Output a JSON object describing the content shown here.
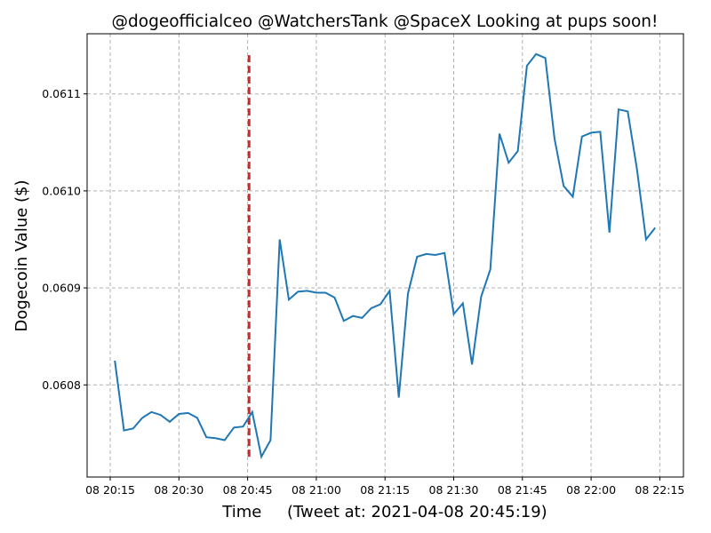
{
  "chart_data": {
    "type": "line",
    "title": "@dogeofficialceo @WatchersTank @SpaceX Looking at pups soon!",
    "xlabel": "Time     (Tweet at: 2021-04-08 20:45:19)",
    "ylabel": "Dogecoin Value ($)",
    "xlim": [
      "2021-04-08 20:09:57",
      "2021-04-08 22:20:10"
    ],
    "ylim": [
      0.060705,
      0.061162
    ],
    "grid": true,
    "x_ticks": [
      "08 20:15",
      "08 20:30",
      "08 20:45",
      "08 21:00",
      "08 21:15",
      "08 21:30",
      "08 21:45",
      "08 22:00",
      "08 22:15"
    ],
    "x_tick_times": [
      "20:15",
      "20:30",
      "20:45",
      "21:00",
      "21:15",
      "21:30",
      "21:45",
      "22:00",
      "22:15"
    ],
    "y_ticks": [
      "0.0608",
      "0.0609",
      "0.0610",
      "0.0611"
    ],
    "line_color": "#1f77b4",
    "tweet_marker": {
      "time": "20:45:19",
      "y_range": [
        0.060726,
        0.06114
      ],
      "color": "#d62728",
      "style": "dashed"
    },
    "series": [
      {
        "start_time": "20:16",
        "interval_minutes": 2,
        "values": [
          0.060825,
          0.060753,
          0.060755,
          0.060766,
          0.060772,
          0.060769,
          0.060762,
          0.06077,
          0.060771,
          0.060766,
          0.060746,
          0.060745,
          0.060743,
          0.060756,
          0.060757,
          0.060772,
          0.060726,
          0.060743,
          0.06095,
          0.060888,
          0.060896,
          0.060897,
          0.060895,
          0.060895,
          0.06089,
          0.060866,
          0.060871,
          0.060869,
          0.060879,
          0.060883,
          0.060897,
          0.060787,
          0.060894,
          0.060932,
          0.060935,
          0.060934,
          0.060936,
          0.060873,
          0.060884,
          0.060821,
          0.060891,
          0.060919,
          0.061059,
          0.061029,
          0.061041,
          0.061129,
          0.061141,
          0.061137,
          0.061054,
          0.061005,
          0.060994,
          0.061056,
          0.06106,
          0.061061,
          0.060957,
          0.061084,
          0.061082,
          0.061023,
          0.06095,
          0.060962
        ]
      }
    ]
  }
}
